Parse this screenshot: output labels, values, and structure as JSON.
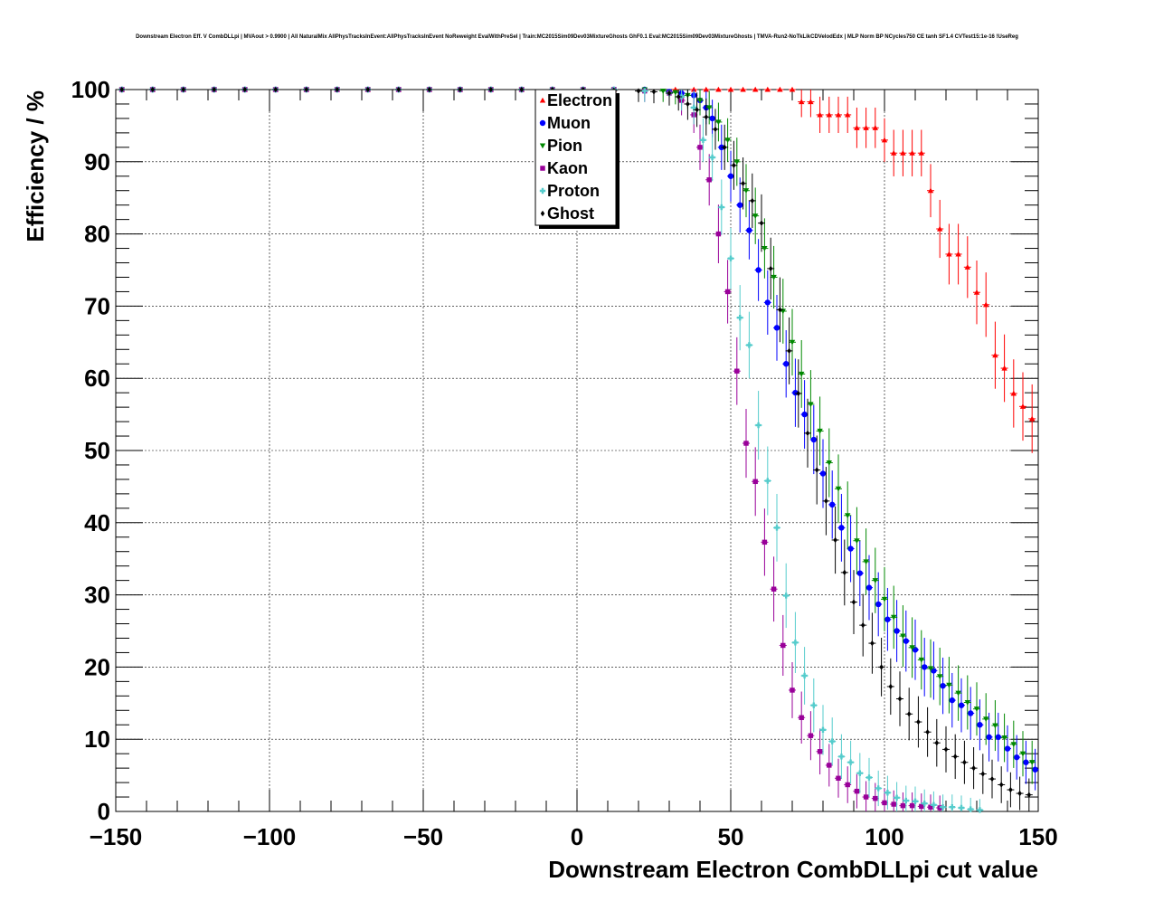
{
  "chart_data": {
    "type": "scatter",
    "title": "Downstream Electron Eff. V CombDLLpi | MVAout > 0.9900 | All NaturalMix AllPhysTracksInEvent:AllPhysTracksInEvent NoReweight EvalWithPreSel | Train:MC2015Sim09Dev03MixtureGhosts GhF0.1 Eval:MC2015Sim09Dev03MixtureGhosts | TMVA-Run2-NoTkLikCDVelodEdx | MLP Norm BP NCycles750 CE tanh SF1.4 CVTest15:1e-16 !UseReg",
    "xlabel": "Downstream Electron CombDLLpi cut value",
    "ylabel": "Efficiency / %",
    "xlim": [
      -150,
      150
    ],
    "ylim": [
      0,
      100
    ],
    "x_ticks": [
      "−150",
      "−100",
      "−50",
      "0",
      "50",
      "100",
      "150"
    ],
    "y_ticks": [
      "0",
      "10",
      "20",
      "30",
      "40",
      "50",
      "60",
      "70",
      "80",
      "90",
      "100"
    ],
    "grid": true,
    "legend_position": "top-center",
    "series": [
      {
        "name": "Electron",
        "color": "#ff0000",
        "marker": "triangle",
        "x": [
          -148,
          -138,
          -128,
          -118,
          -108,
          -98,
          -88,
          -78,
          -68,
          -58,
          -48,
          -38,
          -28,
          -18,
          -8,
          2,
          12,
          22,
          32,
          38,
          42,
          46,
          50,
          54,
          58,
          62,
          66,
          70,
          73,
          76,
          79,
          82,
          85,
          88,
          91,
          94,
          97,
          100,
          103,
          106,
          109,
          112,
          115,
          118,
          121,
          124,
          127,
          130,
          133,
          136,
          139,
          142,
          145,
          148
        ],
        "y": [
          100,
          100,
          100,
          100,
          100,
          100,
          100,
          100,
          100,
          100,
          100,
          100,
          100,
          100,
          100,
          100,
          100,
          100,
          100,
          100,
          100,
          100,
          100,
          100,
          100,
          100,
          100,
          100,
          98.3,
          98.3,
          96.5,
          96.5,
          96.5,
          96.5,
          94.7,
          94.7,
          94.7,
          93,
          91.2,
          91.2,
          91.2,
          91.2,
          86,
          80.7,
          77.2,
          77.2,
          75.4,
          71.9,
          70.2,
          63.2,
          61.4,
          57.9,
          56.1,
          54.4
        ]
      },
      {
        "name": "Muon",
        "color": "#0000ff",
        "marker": "circle",
        "x": [
          -148,
          -138,
          -128,
          -118,
          -108,
          -98,
          -88,
          -78,
          -68,
          -58,
          -48,
          -38,
          -28,
          -18,
          -8,
          2,
          12,
          22,
          30,
          34,
          38,
          40,
          42,
          44,
          47,
          50,
          53,
          56,
          59,
          62,
          65,
          68,
          71,
          74,
          77,
          80,
          83,
          86,
          89,
          92,
          95,
          98,
          101,
          104,
          107,
          110,
          113,
          116,
          119,
          122,
          125,
          128,
          131,
          134,
          137,
          140,
          143,
          146,
          149
        ],
        "y": [
          100,
          100,
          100,
          100,
          100,
          100,
          100,
          100,
          100,
          100,
          100,
          100,
          100,
          100,
          100,
          100,
          100,
          100,
          99.7,
          99.5,
          99.2,
          98.5,
          97.5,
          96,
          92,
          88,
          84,
          80.5,
          75,
          70.5,
          67,
          62,
          58,
          55,
          51.5,
          46.8,
          42.5,
          39.3,
          36.4,
          33,
          31,
          28.7,
          26.6,
          25,
          23.6,
          22.4,
          20,
          19.5,
          17.4,
          15.4,
          14.7,
          13.6,
          12,
          10.3,
          10.3,
          8.7,
          7.5,
          6.8,
          5.8
        ]
      },
      {
        "name": "Pion",
        "color": "#008800",
        "marker": "triangle-down",
        "x": [
          -148,
          -138,
          -128,
          -118,
          -108,
          -98,
          -88,
          -78,
          -68,
          -58,
          -48,
          -38,
          -28,
          -18,
          -8,
          2,
          12,
          22,
          28,
          32,
          36,
          40,
          43,
          46,
          49,
          52,
          55,
          58,
          61,
          64,
          67,
          70,
          73,
          76,
          79,
          82,
          85,
          88,
          91,
          94,
          97,
          100,
          103,
          106,
          109,
          112,
          115,
          118,
          121,
          124,
          127,
          130,
          133,
          136,
          139,
          142,
          145,
          148
        ],
        "y": [
          100,
          100,
          100,
          100,
          100,
          100,
          100,
          100,
          100,
          100,
          100,
          100,
          100,
          100,
          100,
          100,
          100,
          100,
          99.8,
          99.6,
          99.2,
          98.5,
          97.5,
          95.5,
          93,
          90,
          86,
          82.5,
          78,
          74,
          69.3,
          65,
          60.6,
          56.4,
          52.7,
          48.3,
          44.7,
          41,
          37.5,
          34.6,
          32,
          29.4,
          26.9,
          24.3,
          22.7,
          21,
          19.8,
          18.7,
          17.5,
          16.4,
          15.1,
          14.2,
          12.8,
          11.9,
          10.2,
          9.3,
          8,
          6.8
        ]
      },
      {
        "name": "Kaon",
        "color": "#990099",
        "marker": "square",
        "x": [
          -148,
          -138,
          -128,
          -118,
          -108,
          -98,
          -88,
          -78,
          -68,
          -58,
          -48,
          -38,
          -28,
          -18,
          -8,
          2,
          12,
          22,
          30,
          34,
          38,
          40,
          43,
          46,
          49,
          52,
          55,
          58,
          61,
          64,
          67,
          70,
          73,
          76,
          79,
          82,
          85,
          88,
          91,
          94,
          97,
          100,
          103,
          106,
          109,
          112,
          115,
          118
        ],
        "y": [
          100,
          100,
          100,
          100,
          100,
          100,
          100,
          100,
          100,
          100,
          100,
          100,
          100,
          100,
          100,
          100,
          100,
          99.8,
          99.5,
          98.5,
          96.5,
          92,
          87.5,
          80,
          72,
          61,
          51,
          45.7,
          37.3,
          30.8,
          23,
          16.8,
          13,
          10.5,
          8.3,
          6.4,
          4.6,
          3.7,
          2.8,
          2,
          1.8,
          1.2,
          1,
          0.8,
          0.8,
          0.7,
          0.6,
          0.5
        ]
      },
      {
        "name": "Proton",
        "color": "#55cccc",
        "marker": "cross",
        "x": [
          -148,
          -138,
          -128,
          -118,
          -108,
          -98,
          -88,
          -78,
          -68,
          -58,
          -48,
          -38,
          -28,
          -18,
          -8,
          2,
          12,
          22,
          30,
          34,
          38,
          41,
          44,
          47,
          50,
          53,
          56,
          59,
          62,
          65,
          68,
          71,
          74,
          77,
          80,
          83,
          86,
          89,
          92,
          95,
          98,
          101,
          104,
          107,
          110,
          113,
          116,
          119,
          122,
          125,
          128,
          131
        ],
        "y": [
          100,
          100,
          100,
          100,
          100,
          100,
          100,
          100,
          100,
          100,
          100,
          100,
          100,
          100,
          100,
          100,
          100,
          99.8,
          99.5,
          99,
          97.5,
          93,
          90.6,
          83.7,
          76.6,
          68.4,
          64.6,
          53.5,
          45.8,
          39.3,
          29.9,
          23.4,
          18.8,
          14.7,
          11.3,
          9.7,
          7.6,
          6.8,
          5.3,
          4.7,
          3.2,
          2.6,
          1.9,
          1.5,
          1.4,
          1.1,
          0.9,
          0.6,
          0.6,
          0.5,
          0.3,
          0.2
        ]
      },
      {
        "name": "Ghost",
        "color": "#000000",
        "marker": "diamond",
        "x": [
          -148,
          -138,
          -128,
          -118,
          -108,
          -98,
          -88,
          -78,
          -68,
          -58,
          -48,
          -38,
          -28,
          -18,
          -8,
          2,
          12,
          20,
          25,
          30,
          33,
          36,
          39,
          42,
          45,
          48,
          51,
          54,
          57,
          60,
          63,
          66,
          69,
          72,
          75,
          78,
          81,
          84,
          87,
          90,
          93,
          96,
          99,
          102,
          105,
          108,
          111,
          114,
          117,
          120,
          123,
          126,
          129,
          132,
          135,
          138,
          141,
          144,
          147
        ],
        "y": [
          100,
          100,
          100,
          100,
          100,
          100,
          100,
          100,
          100,
          100,
          100,
          100,
          100,
          100,
          100,
          100,
          99.9,
          99.8,
          99.7,
          99.5,
          99,
          98,
          97.2,
          96.2,
          94.5,
          92,
          89.5,
          87,
          84.6,
          81.5,
          75.2,
          69.5,
          63.8,
          57.9,
          52.4,
          47.3,
          43,
          37.6,
          33.1,
          29,
          25.8,
          23.3,
          20,
          17.3,
          15.6,
          13.5,
          12.4,
          11,
          9.5,
          8.6,
          7.6,
          6.8,
          6,
          5.2,
          4.5,
          3.7,
          3,
          2.5,
          2.3
        ]
      }
    ]
  }
}
